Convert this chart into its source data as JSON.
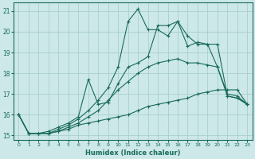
{
  "xlabel": "Humidex (Indice chaleur)",
  "ylabel": "",
  "xlim": [
    -0.5,
    23.5
  ],
  "ylim": [
    14.8,
    21.4
  ],
  "yticks": [
    15,
    16,
    17,
    18,
    19,
    20,
    21
  ],
  "xticks": [
    0,
    1,
    2,
    3,
    4,
    5,
    6,
    7,
    8,
    9,
    10,
    11,
    12,
    13,
    14,
    15,
    16,
    17,
    18,
    19,
    20,
    21,
    22,
    23
  ],
  "bg_color": "#cce8e8",
  "grid_color": "#aacece",
  "line_color": "#1a6b5a",
  "series": [
    [
      16.0,
      15.1,
      15.1,
      15.1,
      15.2,
      15.3,
      15.5,
      15.6,
      15.7,
      15.8,
      15.9,
      16.0,
      16.2,
      16.4,
      16.5,
      16.6,
      16.7,
      16.8,
      17.0,
      17.1,
      17.2,
      17.2,
      17.2,
      16.5
    ],
    [
      16.0,
      15.1,
      15.1,
      15.1,
      15.2,
      15.4,
      15.6,
      15.9,
      16.2,
      16.7,
      17.2,
      17.6,
      18.0,
      18.3,
      18.5,
      18.6,
      18.7,
      18.5,
      18.5,
      18.4,
      18.3,
      17.0,
      16.9,
      16.5
    ],
    [
      16.0,
      15.1,
      15.1,
      15.1,
      15.3,
      15.5,
      15.8,
      16.2,
      16.7,
      17.3,
      18.3,
      20.5,
      21.1,
      20.1,
      20.1,
      19.8,
      20.5,
      19.8,
      19.4,
      19.4,
      18.3,
      16.9,
      16.8,
      16.5
    ],
    [
      16.0,
      15.1,
      15.1,
      15.2,
      15.4,
      15.6,
      15.9,
      17.7,
      16.5,
      16.6,
      17.5,
      18.3,
      18.5,
      18.8,
      20.3,
      20.3,
      20.5,
      19.3,
      19.5,
      19.4,
      19.4,
      16.9,
      16.8,
      16.5
    ]
  ]
}
